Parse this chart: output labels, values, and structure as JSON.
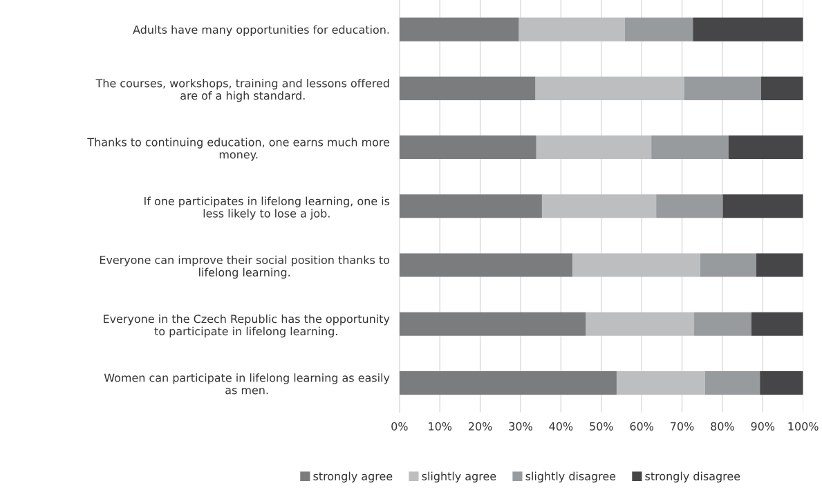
{
  "chart_data": {
    "type": "bar",
    "orientation": "horizontal",
    "stacked": true,
    "categories": [
      "Adults have many opportunities for education.",
      "The courses, workshops, training and lessons offered are of a high standard.",
      "Thanks to continuing education, one earns much more money.",
      "If one participates in lifelong learning, one is less likely to lose a job.",
      "Everyone can improve their social position thanks to lifelong learning.",
      "Everyone in the Czech Republic has the opportunity to participate in lifelong learning.",
      "Women can participate in lifelong learning as easily as men."
    ],
    "series": [
      {
        "name": "strongly agree",
        "color": "#7b7c7e",
        "values": [
          29.6,
          33.7,
          33.9,
          35.3,
          42.9,
          46.2,
          53.8
        ]
      },
      {
        "name": "slightly agree",
        "color": "#bdbec0",
        "values": [
          26.2,
          36.8,
          28.5,
          28.3,
          31.6,
          26.8,
          21.9
        ]
      },
      {
        "name": "slightly disagree",
        "color": "#989b9e",
        "values": [
          16.9,
          19.1,
          19.1,
          16.5,
          13.9,
          14.2,
          13.6
        ]
      },
      {
        "name": "strongly disagree",
        "color": "#464648",
        "values": [
          27.3,
          10.4,
          18.5,
          19.9,
          11.6,
          12.8,
          10.7
        ]
      }
    ],
    "xlim": [
      0,
      100
    ],
    "xticks": [
      {
        "value": 0,
        "label": "0%"
      },
      {
        "value": 10,
        "label": "10%"
      },
      {
        "value": 20,
        "label": "20%"
      },
      {
        "value": 30,
        "label": "30%"
      },
      {
        "value": 40,
        "label": "40%"
      },
      {
        "value": 50,
        "label": "50%"
      },
      {
        "value": 60,
        "label": "60%"
      },
      {
        "value": 70,
        "label": "70%"
      },
      {
        "value": 80,
        "label": "80%"
      },
      {
        "value": 90,
        "label": "90%"
      },
      {
        "value": 100,
        "label": "100%"
      }
    ],
    "grid": "x",
    "legend": "bottom"
  }
}
